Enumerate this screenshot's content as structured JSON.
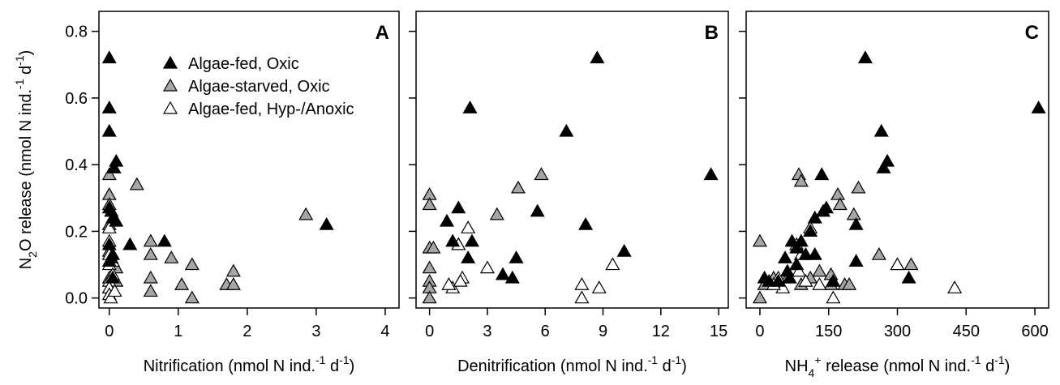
{
  "figure": {
    "ylabel": "N₂O release (nmol N ind.⁻¹ d⁻¹)",
    "ylabel_parts": {
      "pre": "N",
      "sub": "2",
      "mid": "O release (nmol N ind.",
      "sup1": "-1",
      "mid2": " d",
      "sup2": "-1",
      "post": ")"
    }
  },
  "legend": {
    "placement": "top-left of panel A",
    "items": [
      {
        "label": "Algae-fed, Oxic",
        "fill": "#000000"
      },
      {
        "label": "Algae-starved, Oxic",
        "fill": "#a6a6a6"
      },
      {
        "label": "Algae-fed, Hyp-/Anoxic",
        "fill": "#ffffff"
      }
    ]
  },
  "chart_data": [
    {
      "type": "scatter",
      "panel_letter": "A",
      "xlabel": "Nitrification (nmol N ind.⁻¹ d⁻¹)",
      "xlabel_parts": {
        "pre": "",
        "sup0": "",
        "mid": "Nitrification (nmol N ind.",
        "sup1": "-1",
        "mid2": " d",
        "sup2": "-1",
        "post": ")"
      },
      "xlim": [
        -0.15,
        4.2
      ],
      "ylim": [
        -0.03,
        0.86
      ],
      "xticks": [
        0,
        1,
        2,
        3,
        4
      ],
      "xtick_labels": [
        "0",
        "1",
        "2",
        "3",
        "4"
      ],
      "yticks": [
        0.0,
        0.2,
        0.4,
        0.6,
        0.8
      ],
      "ytick_labels": [
        "0.0",
        "0.2",
        "0.4",
        "0.6",
        "0.8"
      ],
      "series": [
        {
          "name": "Algae-fed, Oxic",
          "color": "#000000",
          "points": [
            [
              0.0,
              0.72
            ],
            [
              0.0,
              0.57
            ],
            [
              0.0,
              0.5
            ],
            [
              0.1,
              0.41
            ],
            [
              0.07,
              0.39
            ],
            [
              0.0,
              0.27
            ],
            [
              0.03,
              0.26
            ],
            [
              0.05,
              0.24
            ],
            [
              0.1,
              0.23
            ],
            [
              0.3,
              0.16
            ],
            [
              0.8,
              0.17
            ],
            [
              3.15,
              0.22
            ],
            [
              0.0,
              0.16
            ],
            [
              0.05,
              0.13
            ],
            [
              0.0,
              0.11
            ],
            [
              0.03,
              0.12
            ],
            [
              0.05,
              0.06
            ]
          ]
        },
        {
          "name": "Algae-starved, Oxic",
          "color": "#a6a6a6",
          "points": [
            [
              0.0,
              0.37
            ],
            [
              0.4,
              0.34
            ],
            [
              0.0,
              0.31
            ],
            [
              0.0,
              0.28
            ],
            [
              2.85,
              0.25
            ],
            [
              0.0,
              0.22
            ],
            [
              0.6,
              0.17
            ],
            [
              0.6,
              0.13
            ],
            [
              0.9,
              0.12
            ],
            [
              1.2,
              0.1
            ],
            [
              0.0,
              0.14
            ],
            [
              0.05,
              0.11
            ],
            [
              0.1,
              0.09
            ],
            [
              0.0,
              0.06
            ],
            [
              0.0,
              0.03
            ],
            [
              0.6,
              0.06
            ],
            [
              0.6,
              0.02
            ],
            [
              1.05,
              0.04
            ],
            [
              1.2,
              0.0
            ],
            [
              1.7,
              0.04
            ],
            [
              1.8,
              0.04
            ],
            [
              1.8,
              0.08
            ],
            [
              0.1,
              0.05
            ]
          ]
        },
        {
          "name": "Algae-fed, Hyp-/Anoxic",
          "color": "#ffffff",
          "points": [
            [
              0.0,
              0.21
            ],
            [
              0.0,
              0.17
            ],
            [
              0.0,
              0.13
            ],
            [
              0.0,
              0.1
            ],
            [
              0.05,
              0.07
            ],
            [
              0.0,
              0.05
            ],
            [
              0.0,
              0.03
            ],
            [
              0.0,
              0.01
            ],
            [
              0.02,
              0.0
            ],
            [
              0.05,
              0.11
            ],
            [
              0.08,
              0.02
            ]
          ]
        }
      ]
    },
    {
      "type": "scatter",
      "panel_letter": "B",
      "xlabel": "Denitrification (nmol N ind.⁻¹ d⁻¹)",
      "xlabel_parts": {
        "pre": "",
        "sup0": "",
        "mid": "Denitrification (nmol N ind.",
        "sup1": "-1",
        "mid2": " d",
        "sup2": "-1",
        "post": ")"
      },
      "xlim": [
        -0.7,
        15.5
      ],
      "ylim": [
        -0.03,
        0.86
      ],
      "xticks": [
        0,
        3,
        6,
        9,
        12,
        15
      ],
      "xtick_labels": [
        "0",
        "3",
        "6",
        "9",
        "12",
        "15"
      ],
      "yticks": [
        0.0,
        0.2,
        0.4,
        0.6,
        0.8
      ],
      "ytick_labels": [
        "",
        "",
        "",
        "",
        ""
      ],
      "series": [
        {
          "name": "Algae-fed, Oxic",
          "color": "#000000",
          "points": [
            [
              8.7,
              0.72
            ],
            [
              2.1,
              0.57
            ],
            [
              7.1,
              0.5
            ],
            [
              14.6,
              0.37
            ],
            [
              1.5,
              0.27
            ],
            [
              5.6,
              0.26
            ],
            [
              0.9,
              0.23
            ],
            [
              8.1,
              0.22
            ],
            [
              2.2,
              0.17
            ],
            [
              1.2,
              0.17
            ],
            [
              10.1,
              0.14
            ],
            [
              2.0,
              0.12
            ],
            [
              4.5,
              0.12
            ],
            [
              3.8,
              0.07
            ],
            [
              4.3,
              0.06
            ]
          ]
        },
        {
          "name": "Algae-starved, Oxic",
          "color": "#a6a6a6",
          "points": [
            [
              0.0,
              0.31
            ],
            [
              0.0,
              0.28
            ],
            [
              5.8,
              0.37
            ],
            [
              4.6,
              0.33
            ],
            [
              3.5,
              0.25
            ],
            [
              0.0,
              0.15
            ],
            [
              0.2,
              0.15
            ],
            [
              0.0,
              0.09
            ],
            [
              0.0,
              0.05
            ],
            [
              0.0,
              0.03
            ],
            [
              0.0,
              0.0
            ],
            [
              1.5,
              0.16
            ]
          ]
        },
        {
          "name": "Algae-fed, Hyp-/Anoxic",
          "color": "#ffffff",
          "points": [
            [
              2.0,
              0.21
            ],
            [
              1.5,
              0.16
            ],
            [
              3.0,
              0.09
            ],
            [
              1.7,
              0.06
            ],
            [
              1.2,
              0.03
            ],
            [
              7.9,
              0.04
            ],
            [
              7.9,
              0.0
            ],
            [
              8.8,
              0.03
            ],
            [
              9.5,
              0.1
            ],
            [
              1.6,
              0.05
            ],
            [
              1.0,
              0.04
            ]
          ]
        }
      ]
    },
    {
      "type": "scatter",
      "panel_letter": "C",
      "xlabel": "NH₄⁺ release (nmol N ind.⁻¹ d⁻¹)",
      "xlabel_parts": {
        "pre": "NH",
        "sub0": "4",
        "sup0": "+",
        "mid": " release (nmol N ind.",
        "sup1": "-1",
        "mid2": " d",
        "sup2": "-1",
        "post": ")"
      },
      "xlim": [
        -30,
        630
      ],
      "ylim": [
        -0.03,
        0.86
      ],
      "xticks": [
        0,
        150,
        300,
        450,
        600
      ],
      "xtick_labels": [
        "0",
        "150",
        "300",
        "450",
        "600"
      ],
      "yticks": [
        0.0,
        0.2,
        0.4,
        0.6,
        0.8
      ],
      "ytick_labels": [
        "",
        "",
        "",
        "",
        ""
      ],
      "series": [
        {
          "name": "Algae-fed, Oxic",
          "color": "#000000",
          "points": [
            [
              230,
              0.72
            ],
            [
              608,
              0.57
            ],
            [
              265,
              0.5
            ],
            [
              278,
              0.41
            ],
            [
              270,
              0.39
            ],
            [
              135,
              0.37
            ],
            [
              145,
              0.27
            ],
            [
              138,
              0.26
            ],
            [
              120,
              0.24
            ],
            [
              210,
              0.22
            ],
            [
              110,
              0.2
            ],
            [
              70,
              0.17
            ],
            [
              90,
              0.17
            ],
            [
              80,
              0.15
            ],
            [
              100,
              0.13
            ],
            [
              120,
              0.13
            ],
            [
              55,
              0.12
            ],
            [
              210,
              0.11
            ],
            [
              80,
              0.1
            ],
            [
              10,
              0.06
            ],
            [
              20,
              0.05
            ],
            [
              40,
              0.05
            ],
            [
              325,
              0.06
            ],
            [
              160,
              0.05
            ],
            [
              60,
              0.08
            ],
            [
              65,
              0.06
            ]
          ]
        },
        {
          "name": "Algae-starved, Oxic",
          "color": "#a6a6a6",
          "points": [
            [
              85,
              0.37
            ],
            [
              90,
              0.35
            ],
            [
              170,
              0.31
            ],
            [
              175,
              0.28
            ],
            [
              215,
              0.33
            ],
            [
              205,
              0.25
            ],
            [
              0,
              0.17
            ],
            [
              260,
              0.13
            ],
            [
              300,
              0.1
            ],
            [
              330,
              0.1
            ],
            [
              130,
              0.08
            ],
            [
              155,
              0.07
            ],
            [
              110,
              0.06
            ],
            [
              60,
              0.06
            ],
            [
              30,
              0.06
            ],
            [
              0,
              0.0
            ],
            [
              10,
              0.04
            ],
            [
              90,
              0.04
            ],
            [
              185,
              0.04
            ],
            [
              195,
              0.04
            ],
            [
              80,
              0.1
            ],
            [
              155,
              0.04
            ]
          ]
        },
        {
          "name": "Algae-fed, Hyp-/Anoxic",
          "color": "#ffffff",
          "points": [
            [
              110,
              0.21
            ],
            [
              80,
              0.16
            ],
            [
              90,
              0.13
            ],
            [
              85,
              0.08
            ],
            [
              40,
              0.06
            ],
            [
              50,
              0.03
            ],
            [
              100,
              0.05
            ],
            [
              300,
              0.1
            ],
            [
              160,
              0.0
            ],
            [
              425,
              0.03
            ],
            [
              30,
              0.04
            ],
            [
              130,
              0.04
            ]
          ]
        }
      ]
    }
  ]
}
